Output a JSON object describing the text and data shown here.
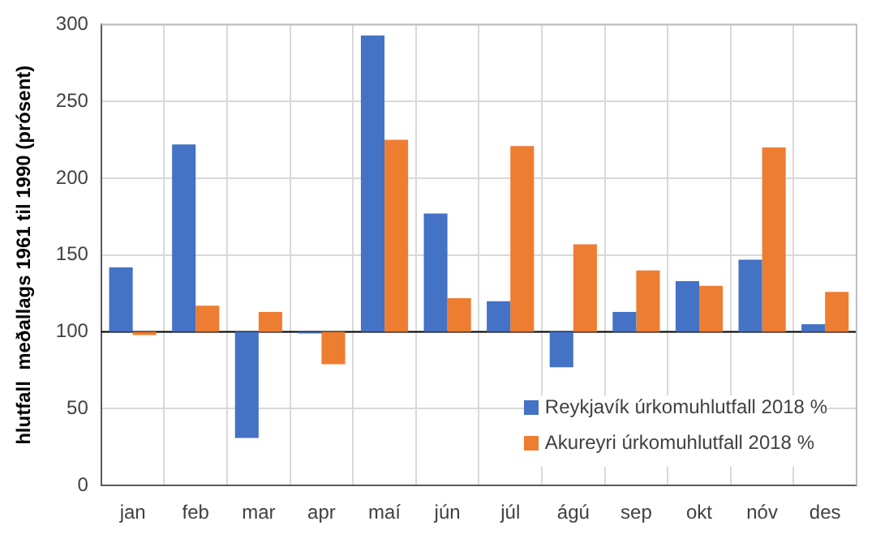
{
  "chart_data": {
    "type": "bar",
    "ylabel": "hlutfall  meðallags 1961 til 1990 (prósent)",
    "categories": [
      "jan",
      "feb",
      "mar",
      "apr",
      "maí",
      "jún",
      "júl",
      "ágú",
      "sep",
      "okt",
      "nóv",
      "des"
    ],
    "series": [
      {
        "name": "Reykjavík úrkomuhlutfall 2018 %",
        "color": "#4472c4",
        "base": [
          100,
          100,
          100,
          100,
          100,
          100,
          100,
          100,
          100,
          100,
          100,
          100
        ],
        "values": [
          42,
          122,
          -69,
          -1,
          193,
          77,
          20,
          -23,
          13,
          33,
          47,
          5
        ]
      },
      {
        "name": "Akureyri úrkomuhlutfall 2018 %",
        "color": "#ed7d31",
        "base": [
          100,
          100,
          100,
          100,
          100,
          100,
          100,
          100,
          100,
          100,
          100,
          100
        ],
        "values": [
          -2,
          17,
          13,
          -21,
          125,
          22,
          121,
          57,
          40,
          30,
          120,
          26
        ]
      }
    ],
    "ylim": [
      0,
      300
    ],
    "yticks": [
      0,
      50,
      100,
      150,
      200,
      250,
      300
    ],
    "grid": true,
    "legend": "bottom right",
    "ref_lines": [
      {
        "axis": "y",
        "value": 100,
        "color": "#000000"
      }
    ]
  }
}
